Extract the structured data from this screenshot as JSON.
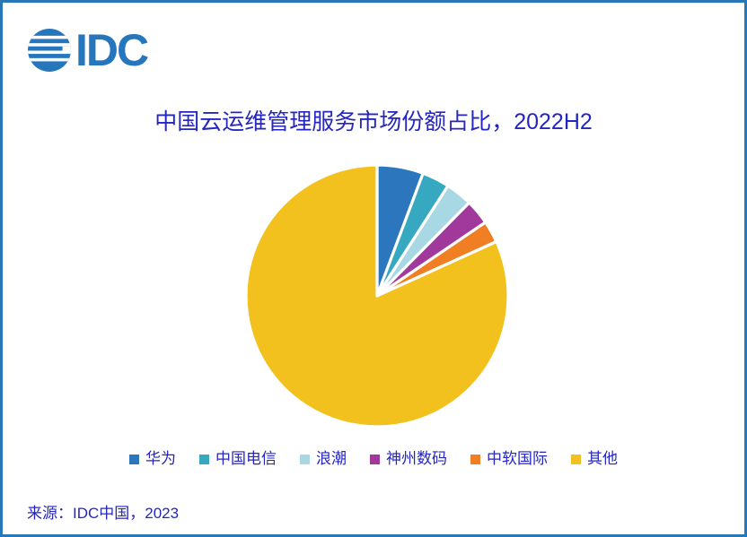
{
  "frame": {
    "border_color": "#2878B8",
    "background_color": "#FFFFFF"
  },
  "logo": {
    "text": "IDC",
    "color": "#2576BC",
    "icon": "striped-globe-icon"
  },
  "header": {
    "title": "中国云运维管理服务市场份额占比，2022H2",
    "text_color": "#2525C0"
  },
  "chart_data": {
    "type": "pie",
    "title": "中国云运维管理服务市场份额占比，2022H2",
    "labels": [
      "华为",
      "中国电信",
      "浪潮",
      "神州数码",
      "中软国际",
      "其他"
    ],
    "values": [
      5.7,
      3.4,
      3.3,
      3.1,
      2.7,
      81.8
    ],
    "unit": "percent-of-market-share (estimated from slice angles, no data labels shown)",
    "colors": [
      "#2B76BC",
      "#36A9C1",
      "#A8D8E3",
      "#A1399D",
      "#F07F24",
      "#F2C11E"
    ],
    "start_angle_deg": 0,
    "direction": "clockwise",
    "slice_border_color": "#FFFFFF",
    "legend_position": "bottom",
    "grid": false
  },
  "footer": {
    "source": "来源：IDC中国，2023"
  }
}
